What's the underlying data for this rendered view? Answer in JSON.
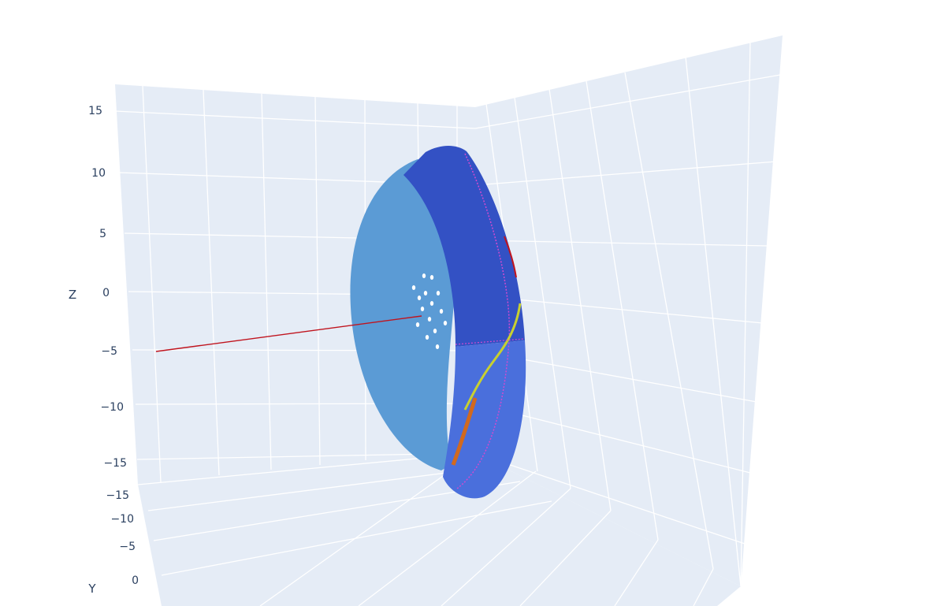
{
  "chart_data": {
    "type": "scatter3d",
    "axes": {
      "z": {
        "title": "Z",
        "ticks": [
          "15",
          "10",
          "5",
          "0",
          "−5",
          "−10",
          "−15"
        ],
        "range": [
          -17,
          17
        ]
      },
      "y": {
        "title": "Y",
        "ticks": [
          "−15",
          "−10",
          "−5",
          "0"
        ]
      },
      "x": {
        "title": "",
        "ticks": []
      }
    },
    "background": "#e5ecf6",
    "grid": true,
    "colors": {
      "disk_face": "#5b9bd5",
      "band_upper": "#3351c4",
      "band_lower": "#4a6fdc",
      "line": "#c0141e",
      "trace_yellow": "#c8d030",
      "trace_orange": "#d2691e",
      "trace_magenta": "#d14bd0"
    },
    "legend": "none"
  }
}
